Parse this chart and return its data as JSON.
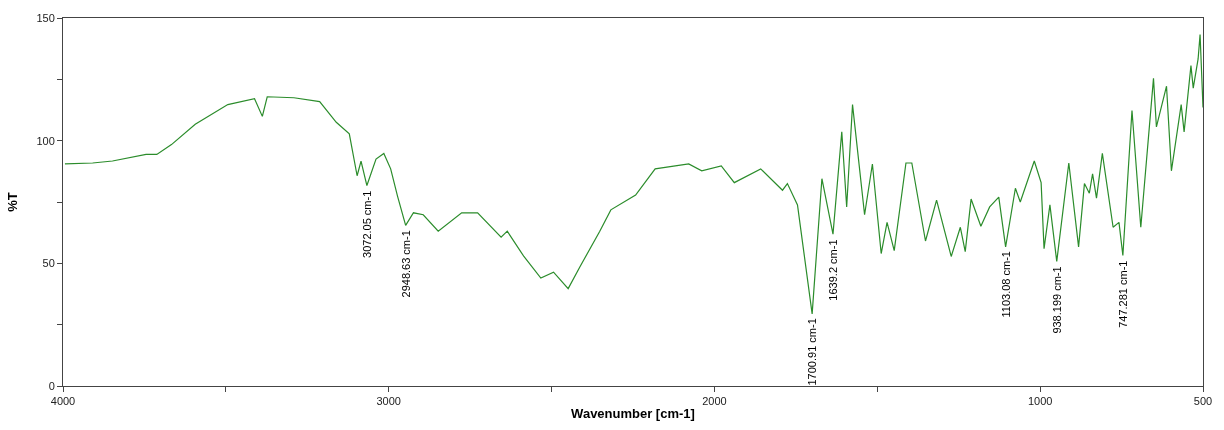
{
  "chart_data": {
    "type": "line",
    "xlabel": "Wavenumber [cm-1]",
    "ylabel": "%T",
    "xlim": [
      4000,
      500
    ],
    "ylim": [
      0,
      150
    ],
    "xticks": [
      4000,
      {
        "value": 3500,
        "label": null
      },
      3000,
      {
        "value": 2500,
        "label": null
      },
      2000,
      {
        "value": 1500,
        "label": null
      },
      1000,
      500
    ],
    "yticks": [
      0,
      {
        "value": 25,
        "label": null
      },
      50,
      {
        "value": 75,
        "label": null
      },
      100,
      {
        "value": 125,
        "label": null
      },
      150
    ],
    "legend": false,
    "marker": "none",
    "line_style": "solid",
    "series": [
      {
        "color": "#2b8c2b",
        "x": [
          3994,
          3909,
          3848,
          3745,
          3712,
          3667,
          3594,
          3494,
          3412,
          3388,
          3373,
          3291,
          3212,
          3161,
          3121,
          3097,
          3085,
          3067,
          3039,
          3015,
          2994,
          2973,
          2948,
          2924,
          2894,
          2848,
          2776,
          2727,
          2655,
          2636,
          2585,
          2533,
          2494,
          2449,
          2412,
          2352,
          2318,
          2242,
          2182,
          2079,
          2039,
          1979,
          1939,
          1858,
          1791,
          1776,
          1745,
          1700,
          1670,
          1636,
          1609,
          1594,
          1576,
          1539,
          1515,
          1488,
          1470,
          1448,
          1412,
          1394,
          1352,
          1318,
          1273,
          1245,
          1230,
          1212,
          1182,
          1155,
          1127,
          1106,
          1076,
          1061,
          1018,
          997,
          988,
          970,
          949,
          912,
          882,
          864,
          849,
          839,
          827,
          809,
          776,
          758,
          746,
          718,
          691,
          652,
          643,
          612,
          597,
          567,
          558,
          537,
          530,
          515,
          509,
          500
        ],
        "values": [
          90.5,
          90.9,
          91.7,
          94.4,
          94.4,
          98.4,
          106.7,
          114.7,
          117.1,
          109.9,
          117.9,
          117.5,
          115.9,
          107.5,
          102.8,
          85.7,
          91.7,
          81.7,
          92.5,
          94.8,
          88.5,
          77.4,
          65.5,
          70.6,
          69.8,
          63.1,
          70.6,
          70.6,
          60.7,
          63.1,
          52.8,
          44.0,
          46.4,
          39.7,
          48.8,
          63.1,
          71.8,
          77.8,
          88.5,
          90.5,
          87.7,
          89.7,
          82.9,
          88.5,
          79.8,
          82.5,
          73.8,
          29.4,
          84.5,
          61.9,
          103.6,
          73.0,
          114.7,
          69.8,
          90.5,
          54.0,
          66.7,
          55.2,
          90.9,
          90.9,
          59.1,
          75.8,
          52.8,
          64.7,
          54.8,
          76.2,
          65.1,
          73.0,
          77.0,
          56.7,
          80.6,
          75.0,
          91.7,
          82.9,
          56.0,
          73.8,
          50.8,
          90.9,
          56.7,
          82.5,
          78.6,
          86.5,
          76.6,
          94.8,
          64.7,
          66.7,
          53.2,
          112.3,
          64.7,
          125.4,
          105.6,
          122.2,
          87.7,
          114.7,
          103.6,
          130.6,
          121.4,
          133.3,
          143.3,
          113.5
        ]
      }
    ],
    "annotations": [
      {
        "text": "3072.05 cm-1",
        "x": 3067,
        "y": 81.7
      },
      {
        "text": "2948.63 cm-1",
        "x": 2948,
        "y": 65.5
      },
      {
        "text": "1700.91 cm-1",
        "x": 1700,
        "y": 29.4
      },
      {
        "text": "1639.2 cm-1",
        "x": 1636,
        "y": 61.9
      },
      {
        "text": "1103.08 cm-1",
        "x": 1106,
        "y": 56.7
      },
      {
        "text": "938.199 cm-1",
        "x": 949,
        "y": 50.8
      },
      {
        "text": "747.281 cm-1",
        "x": 746,
        "y": 53.2
      }
    ]
  }
}
